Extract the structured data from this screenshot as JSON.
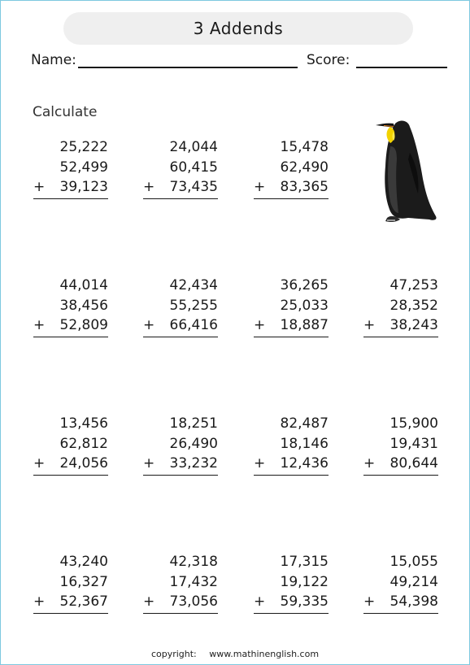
{
  "title": "3 Addends",
  "header": {
    "name_label": "Name:",
    "score_label": "Score:"
  },
  "instruction": "Calculate",
  "problems": [
    {
      "a": "25,222",
      "b": "52,499",
      "c": "39,123"
    },
    {
      "a": "24,044",
      "b": "60,415",
      "c": "73,435"
    },
    {
      "a": "15,478",
      "b": "62,490",
      "c": "83,365"
    },
    {
      "a": "44,014",
      "b": "38,456",
      "c": "52,809"
    },
    {
      "a": "42,434",
      "b": "55,255",
      "c": "66,416"
    },
    {
      "a": "36,265",
      "b": "25,033",
      "c": "18,887"
    },
    {
      "a": "47,253",
      "b": "28,352",
      "c": "38,243"
    },
    {
      "a": "13,456",
      "b": "62,812",
      "c": "24,056"
    },
    {
      "a": "18,251",
      "b": "26,490",
      "c": "33,232"
    },
    {
      "a": "82,487",
      "b": "18,146",
      "c": "12,436"
    },
    {
      "a": "15,900",
      "b": "19,431",
      "c": "80,644"
    },
    {
      "a": "43,240",
      "b": "16,327",
      "c": "52,367"
    },
    {
      "a": "42,318",
      "b": "17,432",
      "c": "73,056"
    },
    {
      "a": "17,315",
      "b": "19,122",
      "c": "59,335"
    },
    {
      "a": "15,055",
      "b": "49,214",
      "c": "54,398"
    }
  ],
  "operator": "+",
  "illustration": {
    "icon": "penguin-icon"
  },
  "footer": {
    "copyright_label": "copyright:",
    "website": "www.mathinenglish.com"
  }
}
